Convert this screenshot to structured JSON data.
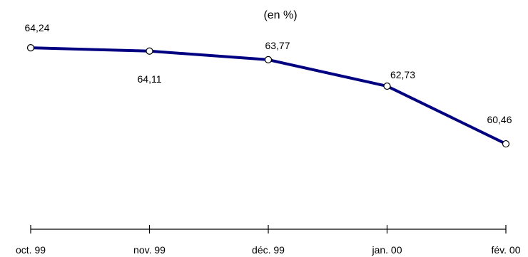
{
  "chart_data": {
    "type": "line",
    "unit_label": "(en %)",
    "categories": [
      "oct. 99",
      "nov. 99",
      "déc. 99",
      "jan. 00",
      "fév. 00"
    ],
    "series": [
      {
        "values": [
          64.24,
          64.11,
          63.77,
          62.73,
          60.46
        ],
        "value_labels": [
          "64,24",
          "64,11",
          "63,77",
          "62,73",
          "60,46"
        ],
        "color": "#000080",
        "marker": "open-circle"
      }
    ],
    "ylim": [
      57.1,
      65.0
    ],
    "grid": false,
    "legend": false
  }
}
